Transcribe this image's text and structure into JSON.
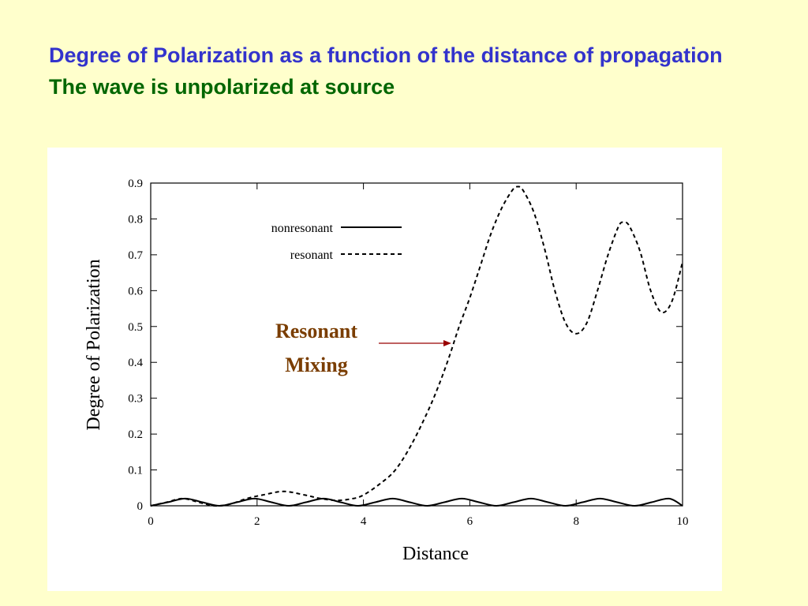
{
  "slide": {
    "title_line1": "Degree of Polarization as a function of the distance of propagation",
    "title_line2": "The wave is unpolarized at source"
  },
  "colors": {
    "background": "#ffffcc",
    "title1": "#3333cc",
    "title2": "#006600",
    "annotation_text": "#7a3d00",
    "annotation_arrow": "#990000"
  },
  "chart_data": {
    "type": "line",
    "title": "",
    "xlabel": "Distance",
    "ylabel": "Degree of Polarization",
    "xlim": [
      0,
      10
    ],
    "ylim": [
      0,
      0.9
    ],
    "xticks": [
      0,
      2,
      4,
      6,
      8,
      10
    ],
    "yticks": [
      0,
      0.1,
      0.2,
      0.3,
      0.4,
      0.5,
      0.6,
      0.7,
      0.8,
      0.9
    ],
    "xtick_labels": [
      "0",
      "2",
      "4",
      "6",
      "8",
      "10"
    ],
    "ytick_labels": [
      "0",
      "0.1",
      "0.2",
      "0.3",
      "0.4",
      "0.5",
      "0.6",
      "0.7",
      "0.8",
      "0.9"
    ],
    "grid": false,
    "legend": "upper-left",
    "series": [
      {
        "name": "nonresonant",
        "style": "solid",
        "x": [
          0,
          0.32,
          0.65,
          0.97,
          1.3,
          1.62,
          1.95,
          2.27,
          2.6,
          2.92,
          3.25,
          3.57,
          3.9,
          4.22,
          4.55,
          4.87,
          5.2,
          5.52,
          5.85,
          6.17,
          6.5,
          6.82,
          7.15,
          7.47,
          7.8,
          8.12,
          8.45,
          8.77,
          9.1,
          9.42,
          9.75,
          10
        ],
        "y": [
          0,
          0.01,
          0.02,
          0.01,
          0,
          0.01,
          0.02,
          0.01,
          0,
          0.01,
          0.02,
          0.01,
          0,
          0.01,
          0.02,
          0.01,
          0,
          0.01,
          0.02,
          0.01,
          0,
          0.01,
          0.02,
          0.01,
          0,
          0.01,
          0.02,
          0.01,
          0,
          0.01,
          0.02,
          0
        ]
      },
      {
        "name": "resonant",
        "style": "dashed",
        "x": [
          0,
          0.3,
          0.6,
          0.9,
          1.2,
          1.5,
          1.8,
          2.1,
          2.5,
          2.9,
          3.2,
          3.5,
          3.8,
          4.0,
          4.3,
          4.6,
          4.9,
          5.2,
          5.4,
          5.6,
          5.8,
          6.0,
          6.2,
          6.4,
          6.6,
          6.8,
          6.9,
          7.0,
          7.2,
          7.4,
          7.6,
          7.8,
          8.0,
          8.2,
          8.4,
          8.6,
          8.8,
          8.9,
          9.0,
          9.2,
          9.4,
          9.6,
          9.8,
          10.0
        ],
        "y": [
          0,
          0.01,
          0.02,
          0.01,
          0,
          0.005,
          0.02,
          0.03,
          0.04,
          0.03,
          0.02,
          0.015,
          0.02,
          0.03,
          0.06,
          0.1,
          0.17,
          0.26,
          0.33,
          0.41,
          0.5,
          0.58,
          0.67,
          0.76,
          0.83,
          0.88,
          0.89,
          0.88,
          0.82,
          0.72,
          0.6,
          0.51,
          0.48,
          0.51,
          0.6,
          0.7,
          0.78,
          0.79,
          0.78,
          0.71,
          0.6,
          0.54,
          0.57,
          0.68
        ]
      }
    ],
    "annotations": [
      {
        "text_line1": "Resonant",
        "text_line2": "Mixing",
        "points_to": {
          "x": 5.7,
          "y": 0.45
        }
      }
    ]
  }
}
